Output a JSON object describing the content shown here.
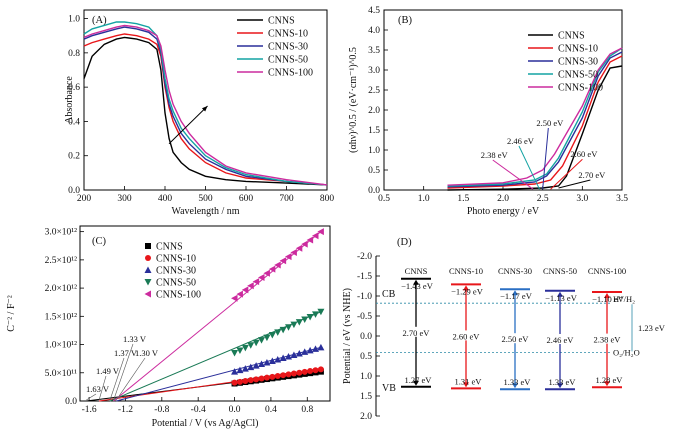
{
  "chart_data": [
    {
      "panel": "(A)",
      "type": "line",
      "xlabel": "Wavelength / nm",
      "ylabel": "Absorbance",
      "xlim": [
        200,
        800
      ],
      "ylim": [
        0.0,
        1.05
      ],
      "xticks": [
        "200",
        "300",
        "400",
        "500",
        "600",
        "700",
        "800"
      ],
      "yticks": [
        "0.0",
        "0.2",
        "0.4",
        "0.6",
        "0.8",
        "1.0"
      ],
      "legend_position": "top-right",
      "series": [
        {
          "name": "CNNS",
          "color": "#000000",
          "x": [
            200,
            220,
            250,
            280,
            300,
            330,
            360,
            380,
            390,
            400,
            410,
            420,
            440,
            460,
            500,
            550,
            600,
            700,
            800
          ],
          "y": [
            0.65,
            0.78,
            0.85,
            0.88,
            0.89,
            0.88,
            0.86,
            0.82,
            0.7,
            0.45,
            0.3,
            0.22,
            0.16,
            0.12,
            0.08,
            0.06,
            0.05,
            0.04,
            0.03
          ]
        },
        {
          "name": "CNNS-10",
          "color": "#e8161a",
          "x": [
            200,
            220,
            250,
            280,
            300,
            330,
            360,
            380,
            390,
            400,
            410,
            420,
            440,
            460,
            500,
            550,
            600,
            700,
            800
          ],
          "y": [
            0.84,
            0.86,
            0.88,
            0.9,
            0.91,
            0.9,
            0.88,
            0.85,
            0.78,
            0.6,
            0.48,
            0.4,
            0.3,
            0.24,
            0.16,
            0.1,
            0.07,
            0.05,
            0.03
          ]
        },
        {
          "name": "CNNS-30",
          "color": "#2a2f9a",
          "x": [
            200,
            220,
            250,
            280,
            300,
            330,
            360,
            380,
            390,
            400,
            410,
            420,
            440,
            460,
            500,
            550,
            600,
            700,
            800
          ],
          "y": [
            0.88,
            0.9,
            0.92,
            0.94,
            0.95,
            0.94,
            0.92,
            0.88,
            0.8,
            0.62,
            0.5,
            0.43,
            0.33,
            0.27,
            0.18,
            0.12,
            0.08,
            0.05,
            0.03
          ]
        },
        {
          "name": "CNNS-50",
          "color": "#14a3a3",
          "x": [
            200,
            220,
            250,
            280,
            300,
            330,
            360,
            380,
            390,
            400,
            410,
            420,
            440,
            460,
            500,
            550,
            600,
            700,
            800
          ],
          "y": [
            0.91,
            0.94,
            0.96,
            0.98,
            0.98,
            0.97,
            0.95,
            0.9,
            0.82,
            0.65,
            0.53,
            0.46,
            0.36,
            0.3,
            0.2,
            0.13,
            0.09,
            0.05,
            0.03
          ]
        },
        {
          "name": "CNNS-100",
          "color": "#cc2b9e",
          "x": [
            200,
            220,
            250,
            280,
            300,
            330,
            360,
            380,
            390,
            400,
            410,
            420,
            440,
            460,
            500,
            550,
            600,
            700,
            800
          ],
          "y": [
            0.89,
            0.91,
            0.93,
            0.95,
            0.96,
            0.95,
            0.93,
            0.9,
            0.84,
            0.7,
            0.58,
            0.5,
            0.4,
            0.33,
            0.22,
            0.14,
            0.1,
            0.06,
            0.03
          ]
        }
      ],
      "arrow": {
        "from": [
          410,
          0.27
        ],
        "to": [
          505,
          0.49
        ]
      }
    },
    {
      "panel": "(B)",
      "type": "line",
      "xlabel": "Photo energy / eV",
      "ylabel": "(αhν)^0.5 / (eV·cm⁻¹)^0.5",
      "xlim": [
        0.5,
        3.5
      ],
      "ylim": [
        0.0,
        4.5
      ],
      "xticks": [
        "0.5",
        "1.0",
        "1.5",
        "2.0",
        "2.5",
        "3.0",
        "3.5"
      ],
      "yticks": [
        "0.0",
        "0.5",
        "1.0",
        "1.5",
        "2.0",
        "2.5",
        "3.0",
        "3.5",
        "4.0",
        "4.5"
      ],
      "legend_position": "top-right",
      "series": [
        {
          "name": "CNNS",
          "color": "#000000",
          "x": [
            1.3,
            2.0,
            2.5,
            2.7,
            2.8,
            3.0,
            3.2,
            3.35,
            3.5
          ],
          "y": [
            0.0,
            0.02,
            0.05,
            0.1,
            0.35,
            1.4,
            2.5,
            3.05,
            3.1
          ]
        },
        {
          "name": "CNNS-10",
          "color": "#e8161a",
          "x": [
            1.3,
            2.0,
            2.4,
            2.6,
            2.75,
            3.0,
            3.2,
            3.35,
            3.5
          ],
          "y": [
            0.05,
            0.1,
            0.15,
            0.25,
            0.6,
            1.6,
            2.7,
            3.2,
            3.35
          ]
        },
        {
          "name": "CNNS-30",
          "color": "#2a2f9a",
          "x": [
            1.3,
            2.0,
            2.4,
            2.55,
            2.7,
            3.0,
            3.2,
            3.35,
            3.5
          ],
          "y": [
            0.08,
            0.12,
            0.2,
            0.35,
            0.7,
            1.8,
            2.85,
            3.3,
            3.45
          ]
        },
        {
          "name": "CNNS-50",
          "color": "#14a3a3",
          "x": [
            1.3,
            2.0,
            2.4,
            2.55,
            2.7,
            3.0,
            3.2,
            3.35,
            3.5
          ],
          "y": [
            0.1,
            0.15,
            0.25,
            0.4,
            0.8,
            1.95,
            2.95,
            3.35,
            3.55
          ]
        },
        {
          "name": "CNNS-100",
          "color": "#cc2b9e",
          "x": [
            1.3,
            2.0,
            2.3,
            2.5,
            2.65,
            3.0,
            3.2,
            3.35,
            3.5
          ],
          "y": [
            0.12,
            0.18,
            0.3,
            0.5,
            0.9,
            2.1,
            3.0,
            3.4,
            3.55
          ]
        }
      ],
      "annotations": [
        {
          "text": "2.50 eV",
          "at": [
            2.5,
            0.02
          ],
          "label": [
            2.42,
            1.6
          ],
          "color": "#2a2f9a"
        },
        {
          "text": "2.46 eV",
          "at": [
            2.46,
            0.02
          ],
          "label": [
            2.05,
            1.15
          ],
          "color": "#14a3a3"
        },
        {
          "text": "2.38 eV",
          "at": [
            2.38,
            0.02
          ],
          "label": [
            1.72,
            0.8
          ],
          "color": "#cc2b9e"
        },
        {
          "text": "2.60 eV",
          "at": [
            2.6,
            0.02
          ],
          "label": [
            2.85,
            0.82
          ],
          "color": "#e8161a"
        },
        {
          "text": "2.70 eV",
          "at": [
            2.7,
            0.05
          ],
          "label": [
            2.95,
            0.3
          ],
          "color": "#000000"
        }
      ]
    },
    {
      "panel": "(C)",
      "type": "scatter",
      "xlabel": "Potential / V (vs Ag/AgCl)",
      "ylabel": "C⁻² / F⁻²",
      "xlim": [
        -1.7,
        1.05
      ],
      "ylim": [
        0,
        3100000000000.0
      ],
      "xticks": [
        "-1.6",
        "-1.2",
        "-0.8",
        "-0.4",
        "0.0",
        "0.4",
        "0.8"
      ],
      "yticks": [
        "0.0",
        "5.0×10¹¹",
        "1.0×10¹²",
        "1.5×10¹²",
        "2.0×10¹²",
        "2.5×10¹²",
        "3.0×10¹²"
      ],
      "legend_position": "top-left",
      "series": [
        {
          "name": "CNNS",
          "color": "#000000",
          "marker": "square",
          "x0": -1.63,
          "x": [
            0.0,
            0.2,
            0.4,
            0.6,
            0.8,
            0.95
          ],
          "y": [
            310000000000.0,
            355000000000.0,
            400000000000.0,
            445000000000.0,
            490000000000.0,
            520000000000.0
          ]
        },
        {
          "name": "CNNS-10",
          "color": "#e8161a",
          "marker": "circle",
          "x0": -1.49,
          "x": [
            0.0,
            0.2,
            0.4,
            0.6,
            0.8,
            0.95
          ],
          "y": [
            325000000000.0,
            375000000000.0,
            425000000000.0,
            475000000000.0,
            525000000000.0,
            560000000000.0
          ]
        },
        {
          "name": "CNNS-30",
          "color": "#2a2f9a",
          "marker": "triangle",
          "x0": -1.3,
          "x": [
            0.0,
            0.2,
            0.4,
            0.6,
            0.8,
            0.95
          ],
          "y": [
            520000000000.0,
            620000000000.0,
            720000000000.0,
            810000000000.0,
            900000000000.0,
            950000000000.0
          ]
        },
        {
          "name": "CNNS-50",
          "color": "#1a7a56",
          "marker": "triangle-down",
          "x0": -1.37,
          "x": [
            0.0,
            0.2,
            0.4,
            0.6,
            0.8,
            0.95
          ],
          "y": [
            850000000000.0,
            1000000000000.0,
            1170000000000.0,
            1330000000000.0,
            1500000000000.0,
            1580000000000.0
          ]
        },
        {
          "name": "CNNS-100",
          "color": "#cc2b9e",
          "marker": "triangle-left",
          "x0": -1.33,
          "x": [
            0.0,
            0.2,
            0.4,
            0.6,
            0.8,
            0.95
          ],
          "y": [
            1820000000000.0,
            2070000000000.0,
            2320000000000.0,
            2570000000000.0,
            2820000000000.0,
            3000000000000.0
          ]
        }
      ],
      "annotations": [
        {
          "text": "1.63 V",
          "x": -1.63
        },
        {
          "text": "1.49 V",
          "x": -1.49
        },
        {
          "text": "1.37 V",
          "x": -1.37
        },
        {
          "text": "1.33 V",
          "x": -1.33
        },
        {
          "text": "1.30 V",
          "x": -1.3
        }
      ]
    },
    {
      "panel": "(D)",
      "type": "diagram",
      "ylabel": "Potential / eV (vs NHE)",
      "ylim": [
        -2.0,
        2.0
      ],
      "yticks": [
        "-2.0",
        "-1.5",
        "-1.0",
        "-0.5",
        "0.0",
        "0.5",
        "1.0",
        "1.5",
        "2.0"
      ],
      "labels": {
        "cb": "CB",
        "vb": "VB",
        "h2": "H⁺/H₂",
        "o2": "O₂/H₂O",
        "redox_gap": "1.23 eV"
      },
      "redox_levels": {
        "h2": -0.82,
        "o2": 0.41
      },
      "materials": [
        {
          "name": "CNNS",
          "color": "#000000",
          "cb": -1.43,
          "vb": 1.27,
          "cb_label": "−1.43 eV",
          "vb_label": "1.27 eV",
          "gap": "2.70 eV"
        },
        {
          "name": "CNNS-10",
          "color": "#e8161a",
          "cb": -1.29,
          "vb": 1.31,
          "cb_label": "−1.29 eV",
          "vb_label": "1.31 eV",
          "gap": "2.60 eV"
        },
        {
          "name": "CNNS-30",
          "color": "#2a6fc4",
          "cb": -1.17,
          "vb": 1.33,
          "cb_label": "−1.17 eV",
          "vb_label": "1.33 eV",
          "gap": "2.50 eV"
        },
        {
          "name": "CNNS-50",
          "color": "#2a2f9a",
          "cb": -1.13,
          "vb": 1.33,
          "cb_label": "−1.13 eV",
          "vb_label": "1.33 eV",
          "gap": "2.46 eV"
        },
        {
          "name": "CNNS-100",
          "color": "#e8161a",
          "cb": -1.1,
          "vb": 1.28,
          "cb_label": "−1.10 eV",
          "vb_label": "1.28 eV",
          "gap": "2.38 eV"
        }
      ]
    }
  ]
}
